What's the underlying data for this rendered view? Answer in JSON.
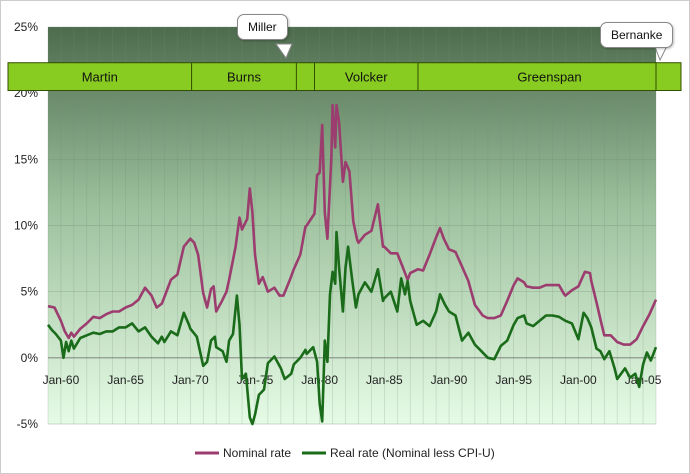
{
  "chart_data": {
    "type": "line",
    "title": "",
    "xlabel": "",
    "ylabel": "",
    "x_ticks": [
      "Jan-60",
      "Jan-65",
      "Jan-70",
      "Jan-75",
      "Jan-80",
      "Jan-85",
      "Jan-90",
      "Jan-95",
      "Jan-00",
      "Jan-05"
    ],
    "y_ticks": [
      "25%",
      "20%",
      "15%",
      "10%",
      "5%",
      "0%",
      "-5%"
    ],
    "ylim": [
      -5,
      25
    ],
    "xlim": [
      1959.0,
      2006.0
    ],
    "grid": true,
    "legend_position": "bottom-center",
    "chairs": [
      {
        "name": "Martin",
        "start": 1959.0,
        "end": 1970.1
      },
      {
        "name": "Burns",
        "start": 1970.1,
        "end": 1978.2
      },
      {
        "name": "Miller",
        "start": 1978.2,
        "end": 1979.6
      },
      {
        "name": "Volcker",
        "start": 1979.6,
        "end": 1987.6
      },
      {
        "name": "Greenspan",
        "start": 1987.6,
        "end": 2006.0
      },
      {
        "name": "Bernanke",
        "start": 2006.0,
        "end": 2006.0
      }
    ],
    "series": [
      {
        "name": "Nominal rate",
        "color": "#9b3d6e",
        "points": [
          [
            1959.0,
            3.9
          ],
          [
            1959.5,
            3.8
          ],
          [
            1960.0,
            2.8
          ],
          [
            1960.3,
            2.0
          ],
          [
            1960.6,
            1.5
          ],
          [
            1960.8,
            1.9
          ],
          [
            1961.0,
            1.6
          ],
          [
            1961.5,
            2.2
          ],
          [
            1962.0,
            2.6
          ],
          [
            1962.5,
            3.1
          ],
          [
            1963.0,
            3.0
          ],
          [
            1963.5,
            3.3
          ],
          [
            1964.0,
            3.5
          ],
          [
            1964.5,
            3.5
          ],
          [
            1965.0,
            3.8
          ],
          [
            1965.5,
            4.0
          ],
          [
            1966.0,
            4.4
          ],
          [
            1966.5,
            5.3
          ],
          [
            1967.0,
            4.7
          ],
          [
            1967.4,
            3.8
          ],
          [
            1967.8,
            4.1
          ],
          [
            1968.0,
            4.6
          ],
          [
            1968.5,
            5.9
          ],
          [
            1969.0,
            6.3
          ],
          [
            1969.5,
            8.4
          ],
          [
            1970.0,
            9.0
          ],
          [
            1970.3,
            8.7
          ],
          [
            1970.6,
            7.8
          ],
          [
            1971.0,
            4.9
          ],
          [
            1971.3,
            3.8
          ],
          [
            1971.6,
            5.2
          ],
          [
            1971.8,
            5.4
          ],
          [
            1972.0,
            3.5
          ],
          [
            1972.4,
            4.2
          ],
          [
            1972.8,
            5.0
          ],
          [
            1973.0,
            5.9
          ],
          [
            1973.5,
            8.4
          ],
          [
            1973.8,
            10.6
          ],
          [
            1974.0,
            9.7
          ],
          [
            1974.4,
            10.5
          ],
          [
            1974.6,
            12.8
          ],
          [
            1974.8,
            11.0
          ],
          [
            1975.0,
            7.8
          ],
          [
            1975.3,
            5.6
          ],
          [
            1975.6,
            6.1
          ],
          [
            1976.0,
            5.0
          ],
          [
            1976.5,
            5.3
          ],
          [
            1976.9,
            4.7
          ],
          [
            1977.2,
            4.7
          ],
          [
            1977.7,
            5.9
          ],
          [
            1978.0,
            6.7
          ],
          [
            1978.5,
            7.8
          ],
          [
            1978.9,
            9.9
          ],
          [
            1979.0,
            10.0
          ],
          [
            1979.6,
            10.9
          ],
          [
            1979.8,
            13.8
          ],
          [
            1980.0,
            14.0
          ],
          [
            1980.2,
            17.6
          ],
          [
            1980.4,
            11.0
          ],
          [
            1980.6,
            9.0
          ],
          [
            1980.9,
            15.0
          ],
          [
            1981.0,
            19.1
          ],
          [
            1981.2,
            15.9
          ],
          [
            1981.3,
            19.1
          ],
          [
            1981.5,
            17.8
          ],
          [
            1981.8,
            13.3
          ],
          [
            1982.0,
            14.8
          ],
          [
            1982.3,
            14.1
          ],
          [
            1982.6,
            10.3
          ],
          [
            1982.9,
            8.9
          ],
          [
            1983.0,
            8.7
          ],
          [
            1983.5,
            9.3
          ],
          [
            1984.0,
            9.6
          ],
          [
            1984.5,
            11.6
          ],
          [
            1984.9,
            8.4
          ],
          [
            1985.0,
            8.4
          ],
          [
            1985.5,
            7.9
          ],
          [
            1986.0,
            7.9
          ],
          [
            1986.4,
            6.9
          ],
          [
            1986.8,
            5.9
          ],
          [
            1987.0,
            6.4
          ],
          [
            1987.6,
            6.7
          ],
          [
            1988.0,
            6.6
          ],
          [
            1988.5,
            7.8
          ],
          [
            1989.0,
            9.1
          ],
          [
            1989.3,
            9.8
          ],
          [
            1989.6,
            9.0
          ],
          [
            1990.0,
            8.2
          ],
          [
            1990.5,
            8.0
          ],
          [
            1991.0,
            6.9
          ],
          [
            1991.5,
            5.8
          ],
          [
            1992.0,
            4.0
          ],
          [
            1992.6,
            3.2
          ],
          [
            1993.0,
            3.0
          ],
          [
            1993.5,
            3.0
          ],
          [
            1994.0,
            3.2
          ],
          [
            1994.5,
            4.3
          ],
          [
            1995.0,
            5.5
          ],
          [
            1995.3,
            6.0
          ],
          [
            1995.8,
            5.7
          ],
          [
            1996.0,
            5.4
          ],
          [
            1996.5,
            5.3
          ],
          [
            1997.0,
            5.3
          ],
          [
            1997.5,
            5.5
          ],
          [
            1998.0,
            5.5
          ],
          [
            1998.5,
            5.5
          ],
          [
            1998.9,
            4.8
          ],
          [
            1999.0,
            4.7
          ],
          [
            1999.5,
            5.1
          ],
          [
            2000.0,
            5.4
          ],
          [
            2000.5,
            6.5
          ],
          [
            2000.9,
            6.4
          ],
          [
            2001.0,
            5.8
          ],
          [
            2001.4,
            4.2
          ],
          [
            2001.8,
            2.5
          ],
          [
            2002.0,
            1.7
          ],
          [
            2002.5,
            1.7
          ],
          [
            2002.9,
            1.3
          ],
          [
            2003.0,
            1.2
          ],
          [
            2003.5,
            1.0
          ],
          [
            2004.0,
            1.0
          ],
          [
            2004.5,
            1.4
          ],
          [
            2005.0,
            2.4
          ],
          [
            2005.5,
            3.3
          ],
          [
            2006.0,
            4.4
          ]
        ]
      },
      {
        "name": "Real rate (Nominal less CPI-U)",
        "color": "#1a6b1a",
        "points": [
          [
            1959.0,
            2.5
          ],
          [
            1959.3,
            2.1
          ],
          [
            1959.6,
            1.8
          ],
          [
            1960.0,
            1.3
          ],
          [
            1960.2,
            0.0
          ],
          [
            1960.4,
            1.2
          ],
          [
            1960.6,
            0.5
          ],
          [
            1960.8,
            1.3
          ],
          [
            1961.0,
            0.7
          ],
          [
            1961.5,
            1.5
          ],
          [
            1962.0,
            1.7
          ],
          [
            1962.5,
            1.9
          ],
          [
            1963.0,
            1.8
          ],
          [
            1963.5,
            2.0
          ],
          [
            1964.0,
            2.0
          ],
          [
            1964.5,
            2.3
          ],
          [
            1965.0,
            2.3
          ],
          [
            1965.5,
            2.6
          ],
          [
            1966.0,
            2.0
          ],
          [
            1966.5,
            2.3
          ],
          [
            1967.0,
            1.6
          ],
          [
            1967.5,
            1.1
          ],
          [
            1967.8,
            1.6
          ],
          [
            1968.0,
            1.2
          ],
          [
            1968.5,
            2.0
          ],
          [
            1969.0,
            1.7
          ],
          [
            1969.5,
            3.4
          ],
          [
            1969.9,
            2.5
          ],
          [
            1970.0,
            2.2
          ],
          [
            1970.5,
            1.6
          ],
          [
            1971.0,
            -0.6
          ],
          [
            1971.3,
            -0.3
          ],
          [
            1971.6,
            1.3
          ],
          [
            1971.9,
            1.6
          ],
          [
            1972.0,
            0.8
          ],
          [
            1972.5,
            0.5
          ],
          [
            1972.8,
            -0.3
          ],
          [
            1973.0,
            1.3
          ],
          [
            1973.3,
            1.8
          ],
          [
            1973.6,
            4.7
          ],
          [
            1973.8,
            2.5
          ],
          [
            1974.0,
            -1.6
          ],
          [
            1974.3,
            -1.2
          ],
          [
            1974.6,
            -4.5
          ],
          [
            1974.8,
            -5.0
          ],
          [
            1975.0,
            -4.3
          ],
          [
            1975.3,
            -2.8
          ],
          [
            1975.7,
            -2.4
          ],
          [
            1976.0,
            -0.4
          ],
          [
            1976.5,
            0.1
          ],
          [
            1977.0,
            -0.8
          ],
          [
            1977.3,
            -1.6
          ],
          [
            1977.8,
            -1.2
          ],
          [
            1978.0,
            -0.5
          ],
          [
            1978.5,
            0.0
          ],
          [
            1978.9,
            0.6
          ],
          [
            1979.0,
            0.3
          ],
          [
            1979.5,
            0.8
          ],
          [
            1979.8,
            -0.3
          ],
          [
            1980.0,
            -3.5
          ],
          [
            1980.2,
            -4.8
          ],
          [
            1980.4,
            1.3
          ],
          [
            1980.6,
            -0.3
          ],
          [
            1980.8,
            4.8
          ],
          [
            1981.0,
            6.5
          ],
          [
            1981.2,
            5.6
          ],
          [
            1981.3,
            9.5
          ],
          [
            1981.5,
            6.8
          ],
          [
            1981.8,
            3.5
          ],
          [
            1982.0,
            6.8
          ],
          [
            1982.2,
            8.4
          ],
          [
            1982.5,
            6.0
          ],
          [
            1982.8,
            3.8
          ],
          [
            1983.0,
            4.8
          ],
          [
            1983.5,
            5.7
          ],
          [
            1984.0,
            5.0
          ],
          [
            1984.5,
            6.7
          ],
          [
            1984.9,
            4.3
          ],
          [
            1985.0,
            4.5
          ],
          [
            1985.5,
            5.0
          ],
          [
            1986.0,
            3.5
          ],
          [
            1986.3,
            6.0
          ],
          [
            1986.6,
            4.8
          ],
          [
            1986.8,
            5.8
          ],
          [
            1987.0,
            4.3
          ],
          [
            1987.5,
            2.5
          ],
          [
            1988.0,
            2.8
          ],
          [
            1988.5,
            2.4
          ],
          [
            1989.0,
            3.5
          ],
          [
            1989.3,
            4.8
          ],
          [
            1989.7,
            4.0
          ],
          [
            1990.0,
            3.5
          ],
          [
            1990.5,
            3.2
          ],
          [
            1991.0,
            1.3
          ],
          [
            1991.5,
            1.9
          ],
          [
            1992.0,
            1.0
          ],
          [
            1992.5,
            0.5
          ],
          [
            1993.0,
            0.0
          ],
          [
            1993.5,
            -0.1
          ],
          [
            1994.0,
            0.9
          ],
          [
            1994.5,
            1.3
          ],
          [
            1995.0,
            2.5
          ],
          [
            1995.3,
            3.0
          ],
          [
            1995.8,
            3.2
          ],
          [
            1996.0,
            2.6
          ],
          [
            1996.5,
            2.4
          ],
          [
            1997.0,
            2.8
          ],
          [
            1997.5,
            3.2
          ],
          [
            1998.0,
            3.2
          ],
          [
            1998.5,
            3.1
          ],
          [
            1999.0,
            2.8
          ],
          [
            1999.5,
            2.6
          ],
          [
            2000.0,
            1.4
          ],
          [
            2000.4,
            3.4
          ],
          [
            2000.7,
            3.0
          ],
          [
            2001.0,
            2.3
          ],
          [
            2001.4,
            0.7
          ],
          [
            2001.7,
            0.5
          ],
          [
            2002.0,
            -0.1
          ],
          [
            2002.4,
            0.5
          ],
          [
            2002.8,
            -0.8
          ],
          [
            2003.0,
            -1.6
          ],
          [
            2003.3,
            -1.2
          ],
          [
            2003.6,
            -0.8
          ],
          [
            2004.0,
            -1.5
          ],
          [
            2004.4,
            -1.2
          ],
          [
            2004.7,
            -2.2
          ],
          [
            2005.0,
            -0.5
          ],
          [
            2005.3,
            0.4
          ],
          [
            2005.6,
            -0.2
          ],
          [
            2006.0,
            0.8
          ]
        ]
      }
    ]
  },
  "legend": {
    "nominal": "Nominal rate",
    "real": "Real rate (Nominal less CPI-U)"
  },
  "callouts": {
    "miller": "Miller",
    "bernanke": "Bernanke"
  },
  "colors": {
    "band": "#88cc22",
    "nominal": "#9b3d6e",
    "real": "#1a6b1a",
    "plot_top": "#4d6b4d",
    "plot_bottom": "#e6fbe6"
  }
}
